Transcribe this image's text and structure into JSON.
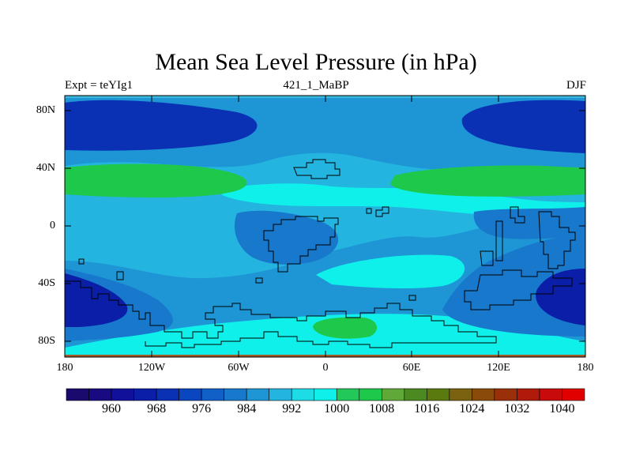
{
  "title": "Mean Sea Level Pressure (in hPa)",
  "left_label": "Expt = teYIg1",
  "center_label": "421_1_MaBP",
  "right_label": "DJF",
  "lat_ticks": [
    "80N",
    "40N",
    "0",
    "40S",
    "80S"
  ],
  "lon_ticks": [
    "180",
    "120W",
    "60W",
    "0",
    "60E",
    "120E",
    "180"
  ],
  "colorbar": {
    "levels": [
      956,
      960,
      964,
      968,
      972,
      976,
      980,
      984,
      988,
      992,
      996,
      1000,
      1004,
      1008,
      1012,
      1016,
      1020,
      1024,
      1028,
      1032,
      1036,
      1040
    ],
    "labels": [
      "960",
      "968",
      "976",
      "984",
      "992",
      "1000",
      "1008",
      "1016",
      "1024",
      "1032",
      "1040"
    ],
    "colors": [
      "#1a0a6e",
      "#180a80",
      "#10109a",
      "#0a1ea8",
      "#0a30b4",
      "#0a46c0",
      "#1060c8",
      "#1878cc",
      "#1e96d6",
      "#24b4e0",
      "#1edce6",
      "#10f0ea",
      "#22c85a",
      "#1ec84a",
      "#60a838",
      "#4a8a20",
      "#5a7a10",
      "#7a6210",
      "#8a4a0a",
      "#9a300a",
      "#b01a0a",
      "#c80a0a",
      "#e00000"
    ]
  },
  "map_fill": {
    "base": "#24b4e0",
    "polar": "#0a30b4",
    "band": "#1e96d6",
    "high": "#10f0ea",
    "ridge": "#1ec84a",
    "low": "#1878cc",
    "deep": "#0a1ea8",
    "top_edge": "#3cb8dc",
    "bottom_edge": "#a05a28"
  }
}
